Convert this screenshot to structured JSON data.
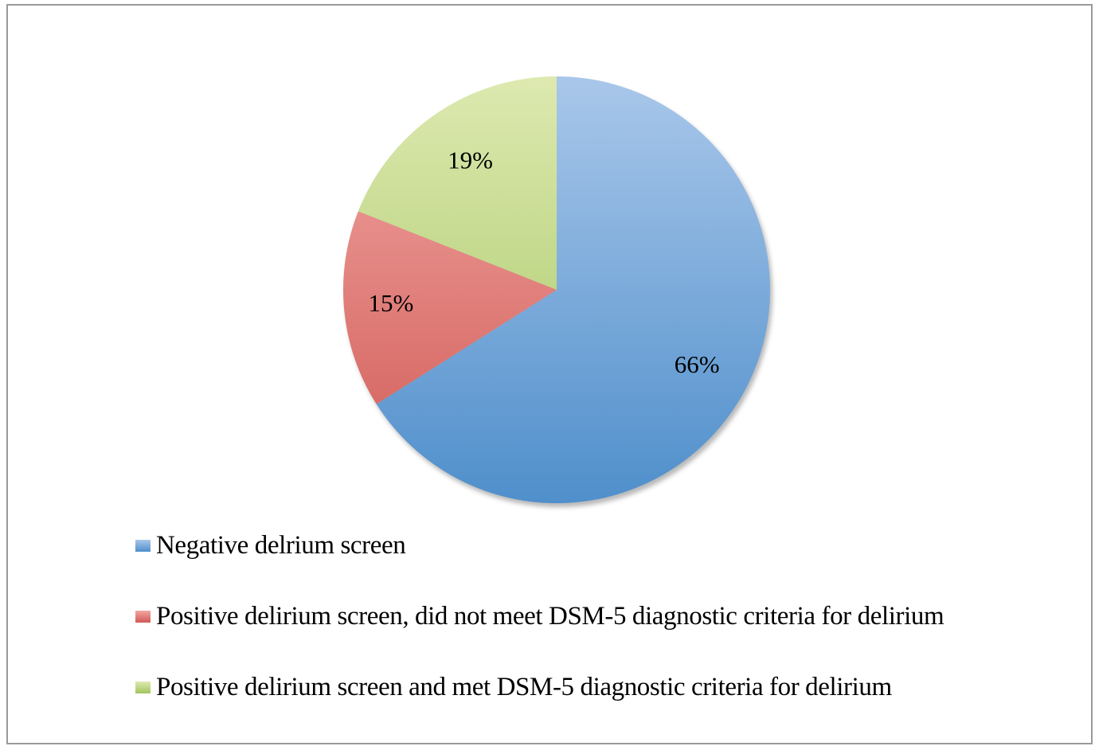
{
  "chart_data": {
    "type": "pie",
    "slices": [
      {
        "label": "Negative delrium screen",
        "value": 66,
        "display": "66%",
        "color": "#4f8fcb",
        "color_light": "#a9c7ea"
      },
      {
        "label": "Positive delirium screen, did not meet DSM-5 diagnostic criteria for delirium",
        "value": 15,
        "display": "15%",
        "color": "#d05a55",
        "color_light": "#f2a7a4"
      },
      {
        "label": "Positive delirium screen and met DSM-5 diagnostic criteria for delirium",
        "value": 19,
        "display": "19%",
        "color": "#a2c55f",
        "color_light": "#dde9b0"
      }
    ],
    "start_angle": "12 o'clock",
    "direction": "clockwise",
    "legend_position": "bottom-left"
  }
}
